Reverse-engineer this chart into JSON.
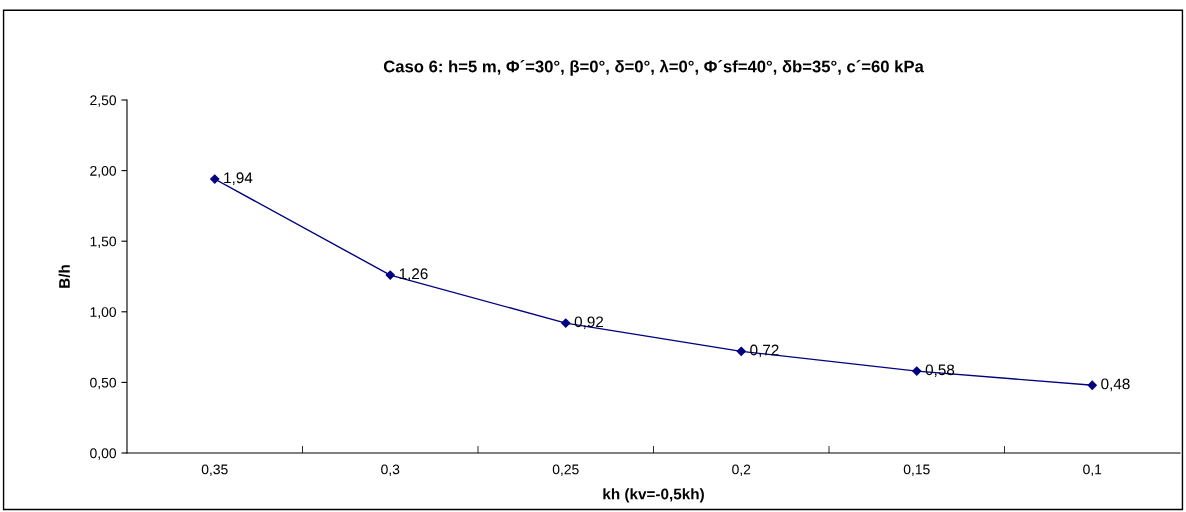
{
  "chart_data": {
    "type": "line",
    "title": "Caso 6: h=5 m, Φ´=30°, β=0°, δ=0°, λ=0°, Φ´sf=40°, δb=35°, c´=60 kPa",
    "xlabel": "kh (kv=-0,5kh)",
    "ylabel": "B/h",
    "categories": [
      "0,35",
      "0,3",
      "0,25",
      "0,2",
      "0,15",
      "0,1"
    ],
    "series": [
      {
        "color": "#000080",
        "values": [
          1.94,
          1.26,
          0.92,
          0.72,
          0.58,
          0.48
        ],
        "value_labels": [
          "1,94",
          "1,26",
          "0,92",
          "0,72",
          "0,58",
          "0,48"
        ]
      }
    ],
    "ylim": [
      0,
      2.5
    ],
    "yticks": [
      {
        "value": 0,
        "label": "0,00"
      },
      {
        "value": 0.5,
        "label": "0,50"
      },
      {
        "value": 1,
        "label": "1,00"
      },
      {
        "value": 1.5,
        "label": "1,50"
      },
      {
        "value": 2,
        "label": "2,00"
      },
      {
        "value": 2.5,
        "label": "2,50"
      }
    ],
    "grid": false,
    "legend": false,
    "marker": "diamond",
    "line_style": "solid"
  }
}
